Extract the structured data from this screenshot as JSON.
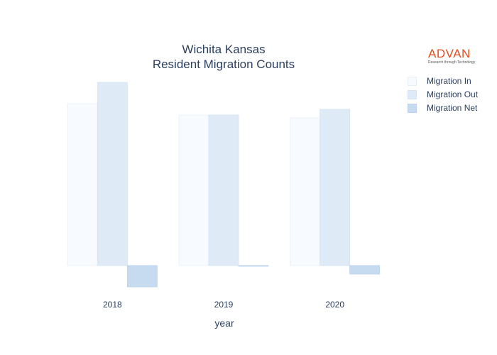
{
  "chart_data": {
    "type": "bar",
    "title_lines": [
      "Wichita Kansas",
      "Resident Migration Counts"
    ],
    "xlabel": "year",
    "ylabel": "",
    "categories": [
      "2018",
      "2019",
      "2020"
    ],
    "series": [
      {
        "name": "Migration In",
        "values": [
          228,
          212,
          208
        ],
        "color": "#f7fbff",
        "stroke": "#e6eef8"
      },
      {
        "name": "Migration Out",
        "values": [
          258,
          212,
          220
        ],
        "color": "#deebf7",
        "stroke": "#d3e2f2"
      },
      {
        "name": "Migration Net",
        "values": [
          -30,
          -1,
          -12
        ],
        "color": "#c6dbef",
        "stroke": "#b9d1ea"
      }
    ],
    "ylim": [
      -45,
      300
    ],
    "grid": false,
    "legend_position": "top-right"
  },
  "branding": {
    "logo_text": "ADVAN",
    "logo_tagline": "Research through Technology",
    "logo_color": "#e24d1f"
  }
}
